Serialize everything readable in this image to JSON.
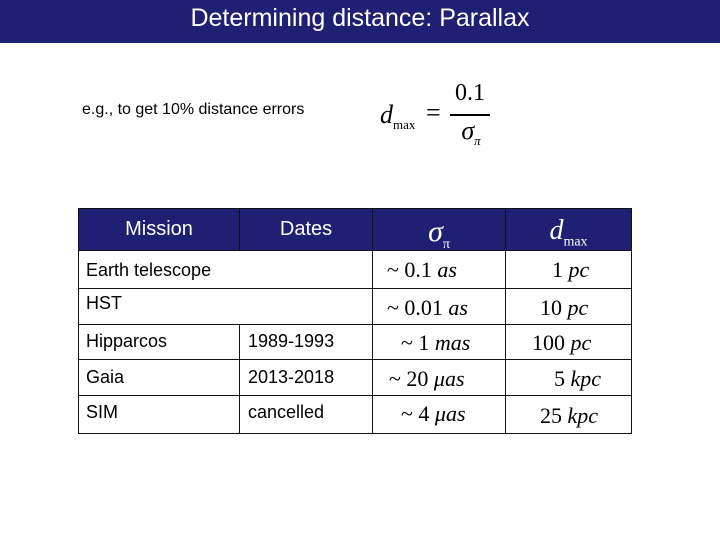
{
  "slide": {
    "title": "Determining distance: Parallax",
    "note": "e.g., to get 10% distance errors",
    "formula": {
      "lhs": "d",
      "lhs_sub": "max",
      "equals": "=",
      "numerator": "0.1",
      "denominator": "σ",
      "denominator_sub": "π"
    }
  },
  "table": {
    "headers": {
      "mission": "Mission",
      "dates": "Dates",
      "sigma": "σ",
      "sigma_sub": "π",
      "dmax": "d",
      "dmax_sub": "max"
    },
    "rows": [
      {
        "mission": "Earth telescope",
        "dates": "",
        "sigma_prefix": "~ 0.1",
        "sigma_unit": "as",
        "dmax_value": "1",
        "dmax_unit": "pc"
      },
      {
        "mission": "HST",
        "dates": "",
        "sigma_prefix": "~ 0.01",
        "sigma_unit": "as",
        "dmax_value": "10",
        "dmax_unit": "pc"
      },
      {
        "mission": "Hipparcos",
        "dates": "1989-1993",
        "sigma_prefix": "~ 1",
        "sigma_unit": "mas",
        "dmax_value": "100",
        "dmax_unit": "pc"
      },
      {
        "mission": "Gaia",
        "dates": "2013-2018",
        "sigma_prefix": "~ 20",
        "sigma_unit": "μas",
        "dmax_value": "5",
        "dmax_unit": "kpc"
      },
      {
        "mission": "SIM",
        "dates": "cancelled",
        "sigma_prefix": "~ 4",
        "sigma_unit": "μas",
        "dmax_value": "25",
        "dmax_unit": "kpc"
      }
    ]
  },
  "colors": {
    "header_bg": "#1f1f73",
    "header_text": "#ffffff"
  }
}
